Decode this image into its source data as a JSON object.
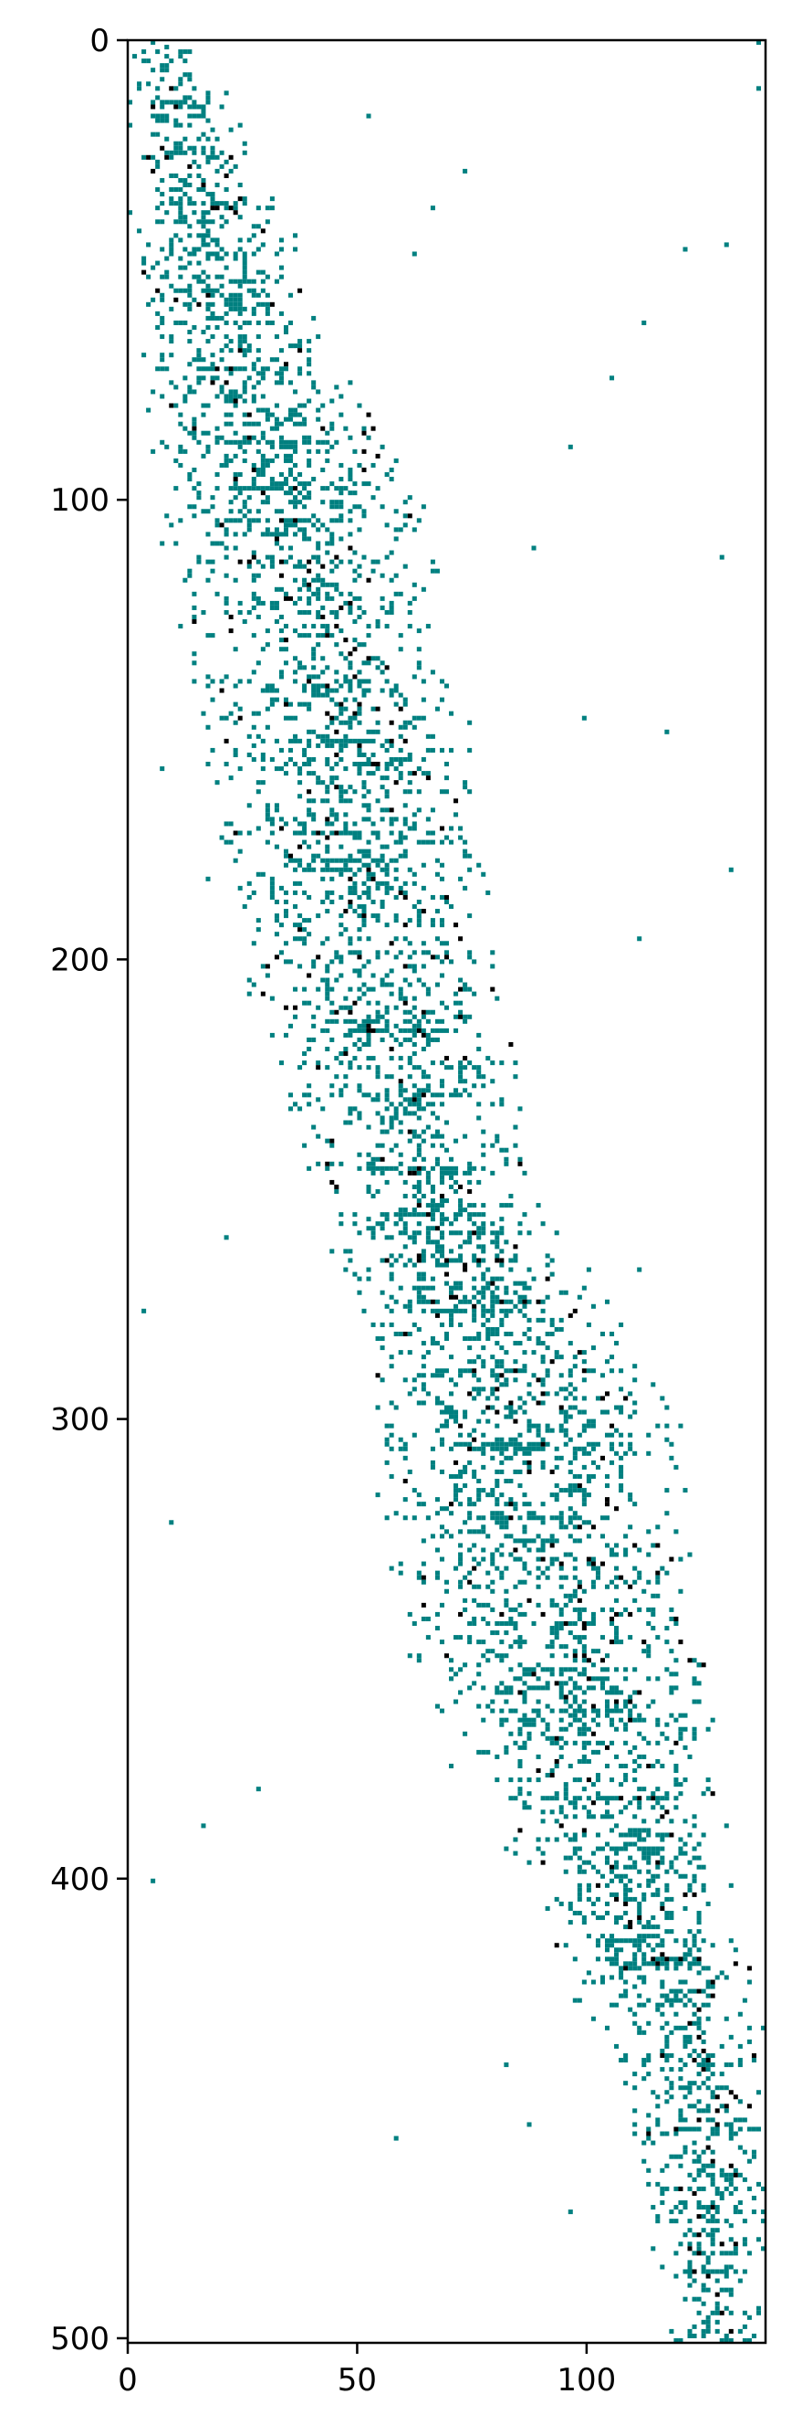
{
  "chart_data": {
    "type": "heatmap",
    "title": "",
    "xlabel": "",
    "ylabel": "",
    "rows": 501,
    "cols": 139,
    "xlim": [
      0,
      139
    ],
    "ylim": [
      501,
      0
    ],
    "x_ticks": [
      0,
      50,
      100
    ],
    "y_ticks": [
      0,
      100,
      200,
      300,
      400,
      500
    ],
    "x_tick_labels": [
      "0",
      "50",
      "100"
    ],
    "y_tick_labels": [
      "0",
      "100",
      "200",
      "300",
      "400",
      "500"
    ],
    "grid": false,
    "legend": "none",
    "colors": {
      "nonzero": "#008080",
      "dense": "#000000",
      "background": "#ffffff"
    },
    "pattern": "sparse banded matrix, nonzeros drift from top-left to bottom-right",
    "band": [
      {
        "row": 0,
        "col_from": 0,
        "col_to": 14
      },
      {
        "row": 50,
        "col_from": 2,
        "col_to": 35
      },
      {
        "row": 100,
        "col_from": 10,
        "col_to": 60
      },
      {
        "row": 150,
        "col_from": 20,
        "col_to": 70
      },
      {
        "row": 200,
        "col_from": 28,
        "col_to": 75
      },
      {
        "row": 250,
        "col_from": 45,
        "col_to": 85
      },
      {
        "row": 300,
        "col_from": 55,
        "col_to": 115
      },
      {
        "row": 350,
        "col_from": 65,
        "col_to": 120
      },
      {
        "row": 400,
        "col_from": 90,
        "col_to": 128
      },
      {
        "row": 450,
        "col_from": 112,
        "col_to": 139
      },
      {
        "row": 501,
        "col_from": 120,
        "col_to": 139
      }
    ],
    "outliers": [
      {
        "row": 0,
        "col": 137
      },
      {
        "row": 28,
        "col": 73
      },
      {
        "row": 73,
        "col": 105
      },
      {
        "row": 158,
        "col": 7
      },
      {
        "row": 195,
        "col": 111
      },
      {
        "row": 260,
        "col": 21
      },
      {
        "row": 380,
        "col": 28
      },
      {
        "row": 456,
        "col": 58
      },
      {
        "row": 453,
        "col": 87
      },
      {
        "row": 440,
        "col": 82
      },
      {
        "row": 150,
        "col": 117
      },
      {
        "row": 110,
        "col": 88
      }
    ]
  }
}
